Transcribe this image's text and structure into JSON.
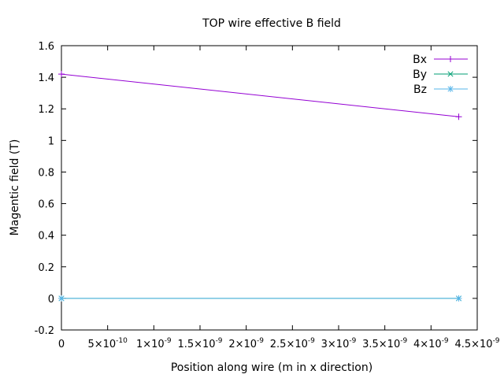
{
  "chart_data": {
    "type": "line",
    "title": "TOP wire effective B field",
    "xlabel": "Position along wire (m in x direction)",
    "ylabel": "Magentic field (T)",
    "xlim": [
      0,
      4.5e-09
    ],
    "ylim": [
      -0.2,
      1.6
    ],
    "yticks": [
      "-0.2",
      "0",
      "0.2",
      "0.4",
      "0.6",
      "0.8",
      "1",
      "1.2",
      "1.4",
      "1.6"
    ],
    "xticks": [
      {
        "value": 0,
        "mant": "0",
        "exp": ""
      },
      {
        "value": 5e-10,
        "mant": "5×10",
        "exp": "-10"
      },
      {
        "value": 1e-09,
        "mant": "1×10",
        "exp": "-9"
      },
      {
        "value": 1.5e-09,
        "mant": "1.5×10",
        "exp": "-9"
      },
      {
        "value": 2e-09,
        "mant": "2×10",
        "exp": "-9"
      },
      {
        "value": 2.5e-09,
        "mant": "2.5×10",
        "exp": "-9"
      },
      {
        "value": 3e-09,
        "mant": "3×10",
        "exp": "-9"
      },
      {
        "value": 3.5e-09,
        "mant": "3.5×10",
        "exp": "-9"
      },
      {
        "value": 4e-09,
        "mant": "4×10",
        "exp": "-9"
      },
      {
        "value": 4.5e-09,
        "mant": "4.5×10",
        "exp": "-9"
      }
    ],
    "legend_position": "top-right",
    "grid": false,
    "series": [
      {
        "name": "Bx",
        "color": "#9400d3",
        "marker": "plus",
        "x": [
          0,
          4.3e-09
        ],
        "y": [
          1.42,
          1.15
        ]
      },
      {
        "name": "By",
        "color": "#009e73",
        "marker": "cross",
        "x": [
          0,
          4.3e-09
        ],
        "y": [
          0,
          0
        ]
      },
      {
        "name": "Bz",
        "color": "#56b4e9",
        "marker": "star",
        "x": [
          0,
          4.3e-09
        ],
        "y": [
          0,
          0
        ]
      }
    ]
  }
}
